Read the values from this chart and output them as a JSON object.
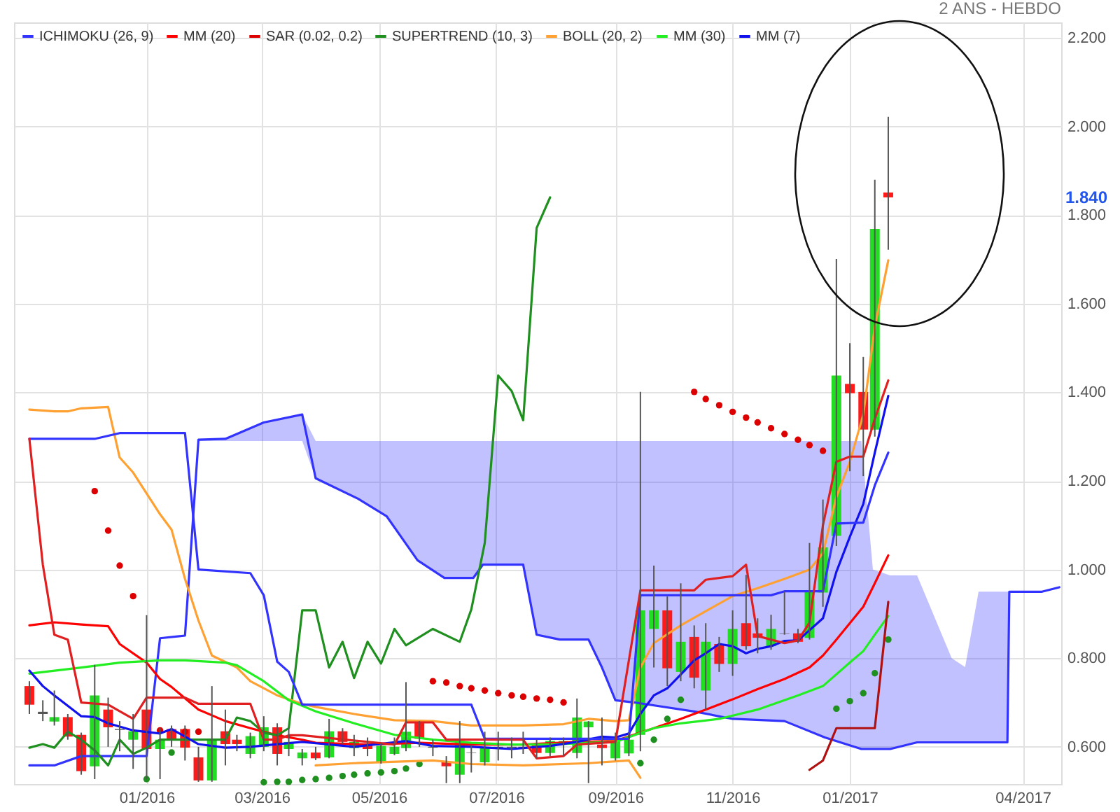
{
  "chart_data": {
    "type": "candlestick",
    "x": [
      "2015-11-01",
      "2015-11-08",
      "2015-11-14",
      "2015-11-21",
      "2015-11-28",
      "2015-12-05",
      "2015-12-12",
      "2015-12-18",
      "2015-12-25",
      "2016-01-01",
      "2016-01-08",
      "2016-01-14",
      "2016-01-21",
      "2016-01-28",
      "2016-02-04",
      "2016-02-11",
      "2016-02-17",
      "2016-02-24",
      "2016-03-02",
      "2016-03-09",
      "2016-03-15",
      "2016-03-22",
      "2016-03-29",
      "2016-04-05",
      "2016-04-12",
      "2016-04-18",
      "2016-04-25",
      "2016-05-02",
      "2016-05-09",
      "2016-05-15",
      "2016-05-22",
      "2016-05-29",
      "2016-06-05",
      "2016-06-12",
      "2016-06-18",
      "2016-06-25",
      "2016-07-02",
      "2016-07-09",
      "2016-07-15",
      "2016-07-22",
      "2016-07-29",
      "2016-08-05",
      "2016-08-12",
      "2016-08-18",
      "2016-08-25",
      "2016-09-01",
      "2016-09-08",
      "2016-09-14",
      "2016-09-21",
      "2016-09-28",
      "2016-10-05",
      "2016-10-12",
      "2016-10-18",
      "2016-10-25",
      "2016-11-01",
      "2016-11-08",
      "2016-11-14",
      "2016-11-21",
      "2016-11-28",
      "2016-12-05",
      "2016-12-11",
      "2016-12-18",
      "2016-12-25",
      "2017-01-01",
      "2017-01-08",
      "2017-01-14",
      "2017-01-21"
    ],
    "ohlc": [
      [
        0.737,
        0.748,
        0.674,
        0.695
      ],
      [
        0.679,
        0.705,
        0.658,
        0.674
      ],
      [
        0.657,
        0.727,
        0.648,
        0.667
      ],
      [
        0.667,
        0.674,
        0.616,
        0.623
      ],
      [
        0.627,
        0.632,
        0.537,
        0.545
      ],
      [
        0.556,
        0.785,
        0.527,
        0.716
      ],
      [
        0.684,
        0.711,
        0.6,
        0.644
      ],
      [
        0.64,
        0.658,
        0.59,
        0.638
      ],
      [
        0.616,
        0.674,
        0.55,
        0.635
      ],
      [
        0.684,
        0.897,
        0.527,
        0.595
      ],
      [
        0.595,
        0.642,
        0.527,
        0.616
      ],
      [
        0.64,
        0.648,
        0.6,
        0.616
      ],
      [
        0.64,
        0.648,
        0.569,
        0.598
      ],
      [
        0.576,
        0.6,
        0.521,
        0.524
      ],
      [
        0.524,
        0.737,
        0.521,
        0.616
      ],
      [
        0.635,
        0.684,
        0.558,
        0.606
      ],
      [
        0.616,
        0.627,
        0.59,
        0.606
      ],
      [
        0.584,
        0.632,
        0.574,
        0.624
      ],
      [
        0.6,
        0.669,
        0.59,
        0.644
      ],
      [
        0.644,
        0.653,
        0.558,
        0.584
      ],
      [
        0.595,
        0.642,
        0.579,
        0.611
      ],
      [
        0.574,
        0.595,
        0.558,
        0.587
      ],
      [
        0.587,
        0.6,
        0.57,
        0.574
      ],
      [
        0.576,
        0.663,
        0.574,
        0.635
      ],
      [
        0.635,
        0.642,
        0.606,
        0.611
      ],
      [
        0.597,
        0.627,
        0.579,
        0.611
      ],
      [
        0.605,
        0.621,
        0.579,
        0.595
      ],
      [
        0.565,
        0.609,
        0.562,
        0.602
      ],
      [
        0.584,
        0.621,
        0.581,
        0.6
      ],
      [
        0.597,
        0.746,
        0.59,
        0.634
      ],
      [
        0.655,
        0.658,
        0.6,
        0.618
      ],
      [
        0.6,
        0.616,
        0.579,
        0.598
      ],
      [
        0.565,
        0.579,
        0.518,
        0.556
      ],
      [
        0.537,
        0.658,
        0.518,
        0.613
      ],
      [
        0.587,
        0.605,
        0.542,
        0.586
      ],
      [
        0.565,
        0.634,
        0.558,
        0.597
      ],
      [
        0.6,
        0.634,
        0.569,
        0.598
      ],
      [
        0.6,
        0.621,
        0.574,
        0.598
      ],
      [
        0.6,
        0.634,
        0.584,
        0.597
      ],
      [
        0.605,
        0.616,
        0.574,
        0.586
      ],
      [
        0.586,
        0.621,
        0.579,
        0.613
      ],
      [
        0.605,
        0.621,
        0.579,
        0.613
      ],
      [
        0.586,
        0.709,
        0.574,
        0.666
      ],
      [
        0.644,
        0.658,
        0.518,
        0.657
      ],
      [
        0.605,
        0.666,
        0.558,
        0.597
      ],
      [
        0.574,
        0.632,
        0.569,
        0.613
      ],
      [
        0.585,
        0.632,
        0.579,
        0.616
      ],
      [
        0.627,
        1.401,
        0.59,
        0.908
      ],
      [
        0.866,
        1.009,
        0.779,
        0.908
      ],
      [
        0.908,
        0.939,
        0.737,
        0.777
      ],
      [
        0.769,
        0.969,
        0.748,
        0.837
      ],
      [
        0.848,
        0.874,
        0.732,
        0.756
      ],
      [
        0.727,
        0.879,
        0.684,
        0.837
      ],
      [
        0.832,
        0.848,
        0.769,
        0.787
      ],
      [
        0.787,
        0.908,
        0.76,
        0.866
      ],
      [
        0.879,
        0.988,
        0.819,
        0.827
      ],
      [
        0.856,
        0.89,
        0.811,
        0.846
      ],
      [
        0.827,
        0.898,
        0.819,
        0.866
      ],
      [
        0.856,
        0.95,
        0.853,
        0.855
      ],
      [
        0.856,
        0.866,
        0.834,
        0.837
      ],
      [
        0.846,
        1.06,
        0.842,
        0.95
      ],
      [
        0.948,
        1.158,
        0.916,
        1.05
      ],
      [
        1.076,
        1.701,
        1.053,
        1.438
      ],
      [
        1.419,
        1.511,
        1.222,
        1.398
      ],
      [
        1.401,
        1.48,
        1.211,
        1.316
      ],
      [
        1.316,
        1.88,
        1.3,
        1.769
      ],
      [
        1.851,
        2.022,
        1.722,
        1.84
      ]
    ],
    "colors": [
      "#ff1a1a",
      "#555555",
      "#22dd22",
      "#ff1a1a",
      "#ff1a1a",
      "#22dd22",
      "#ff1a1a",
      "#555555",
      "#22dd22",
      "#ff1a1a",
      "#22dd22",
      "#ff1a1a",
      "#ff1a1a",
      "#ff1a1a",
      "#22dd22",
      "#ff1a1a",
      "#ff1a1a",
      "#22dd22",
      "#22dd22",
      "#ff1a1a",
      "#22dd22",
      "#22dd22",
      "#ff1a1a",
      "#22dd22",
      "#ff1a1a",
      "#22dd22",
      "#ff1a1a",
      "#22dd22",
      "#22dd22",
      "#22dd22",
      "#ff1a1a",
      "#555555",
      "#ff1a1a",
      "#22dd22",
      "#555555",
      "#22dd22",
      "#555555",
      "#555555",
      "#555555",
      "#ff1a1a",
      "#22dd22",
      "#22dd22",
      "#22dd22",
      "#22dd22",
      "#ff1a1a",
      "#22dd22",
      "#22dd22",
      "#22dd22",
      "#22dd22",
      "#ff1a1a",
      "#22dd22",
      "#ff1a1a",
      "#22dd22",
      "#ff1a1a",
      "#22dd22",
      "#ff1a1a",
      "#ff1a1a",
      "#22dd22",
      "#555555",
      "#ff1a1a",
      "#22dd22",
      "#22dd22",
      "#22dd22",
      "#ff1a1a",
      "#ff1a1a",
      "#22dd22",
      "#ff1a1a"
    ],
    "series": [
      {
        "name": "ICHIMOKU (26, 9)",
        "type": "line",
        "color": "#3333ff",
        "x": [
          "2015-11-01",
          "2015-11-14",
          "2015-11-28",
          "2016-01-01",
          "2016-01-08",
          "2016-01-21",
          "2016-01-28",
          "2016-02-11",
          "2016-03-02",
          "2016-03-22",
          "2016-03-29",
          "2016-04-20",
          "2016-05-05",
          "2016-05-21",
          "2016-06-04",
          "2016-06-19",
          "2016-06-24",
          "2016-07-15",
          "2016-07-22",
          "2016-08-03",
          "2016-08-18",
          "2016-08-25",
          "2016-09-01",
          "2016-09-11",
          "2016-10-13",
          "2016-11-01",
          "2016-11-28",
          "2016-12-19",
          "2017-01-07",
          "2017-01-13",
          "2017-01-22",
          "2017-02-05",
          "2017-02-23",
          "2017-03-02",
          "2017-03-09",
          "2017-03-24",
          "2017-03-25",
          "2017-04-11",
          "2017-04-20"
        ],
        "values": [
          0.558,
          0.558,
          0.579,
          0.579,
          0.845,
          0.851,
          1.293,
          1.295,
          1.332,
          1.35,
          1.206,
          1.16,
          1.12,
          1.021,
          0.981,
          0.981,
          1.011,
          1.011,
          0.853,
          0.842,
          0.842,
          0.779,
          0.705,
          0.7,
          0.679,
          0.663,
          0.658,
          0.621,
          0.595,
          0.595,
          0.595,
          0.61,
          0.61,
          0.61,
          0.61,
          0.61,
          0.95,
          0.95,
          0.96
        ],
        "lower": [
          null,
          null,
          null,
          null,
          null,
          null,
          1.29,
          1.29,
          1.29,
          1.29,
          1.206,
          1.16,
          1.12,
          1.021,
          0.981,
          0.981,
          1.011,
          1.011,
          0.853,
          0.842,
          0.842,
          0.779,
          0.705,
          0.7,
          0.679,
          0.663,
          0.658,
          0.621,
          0.595,
          0.595,
          0.595,
          0.61,
          0.61,
          0.61,
          0.61,
          0.61,
          0.95,
          0.95,
          0.96
        ],
        "upper": [
          null,
          null,
          null,
          null,
          null,
          null,
          1.293,
          1.295,
          1.332,
          1.35,
          1.29,
          1.29,
          1.29,
          1.29,
          1.29,
          1.29,
          1.29,
          1.29,
          1.29,
          1.29,
          1.29,
          1.29,
          1.29,
          1.29,
          1.29,
          1.29,
          1.29,
          1.29,
          1.29,
          1.0,
          0.987,
          0.987,
          0.8,
          0.78,
          0.95,
          0.95,
          0.95,
          0.95,
          0.96
        ]
      },
      {
        "name": "MM (20)",
        "type": "line",
        "color": "#ff0000",
        "x": [
          "2015-11-01",
          "2015-11-14",
          "2015-11-28",
          "2015-12-12",
          "2015-12-18",
          "2016-01-01",
          "2016-01-08",
          "2016-01-14",
          "2016-01-28",
          "2016-02-11",
          "2016-02-24",
          "2016-03-09",
          "2016-03-22",
          "2016-03-29",
          "2016-04-25",
          "2016-05-22",
          "2016-06-18",
          "2016-07-15",
          "2016-08-12",
          "2016-09-01",
          "2016-09-14",
          "2016-09-21",
          "2016-10-05",
          "2016-10-18",
          "2016-11-01",
          "2016-11-14",
          "2016-11-28",
          "2016-12-11",
          "2016-12-18",
          "2016-12-25",
          "2017-01-01",
          "2017-01-08",
          "2017-01-14",
          "2017-01-21"
        ],
        "values": [
          0.874,
          0.881,
          0.876,
          0.872,
          0.832,
          0.79,
          0.753,
          0.735,
          0.684,
          0.658,
          0.642,
          0.626,
          0.616,
          0.609,
          0.605,
          0.609,
          0.605,
          0.605,
          0.611,
          0.613,
          0.632,
          0.642,
          0.663,
          0.684,
          0.707,
          0.73,
          0.753,
          0.779,
          0.806,
          0.842,
          0.879,
          0.916,
          0.969,
          1.032
        ]
      },
      {
        "name": "SAR (0.02, 0.2)",
        "type": "scatter",
        "marker": "circle",
        "color": "#dd0000",
        "x": [
          "2015-12-05",
          "2015-12-12",
          "2015-12-18",
          "2015-12-25",
          "2016-01-08",
          "2016-01-21",
          "2016-01-28",
          "2016-05-29",
          "2016-06-05",
          "2016-06-12",
          "2016-06-18",
          "2016-06-25",
          "2016-07-02",
          "2016-07-09",
          "2016-07-15",
          "2016-07-22",
          "2016-07-29",
          "2016-08-05",
          "2016-10-12",
          "2016-10-18",
          "2016-10-25",
          "2016-11-01",
          "2016-11-08",
          "2016-11-14",
          "2016-11-21",
          "2016-11-28",
          "2016-12-05",
          "2016-12-11",
          "2016-12-18"
        ],
        "values": [
          1.177,
          1.088,
          1.009,
          0.94,
          0.637,
          0.634,
          0.634,
          0.748,
          0.745,
          0.737,
          0.732,
          0.727,
          0.721,
          0.716,
          0.713,
          0.709,
          0.706,
          0.7,
          1.401,
          1.385,
          1.371,
          1.356,
          1.343,
          1.332,
          1.319,
          1.306,
          1.293,
          1.281,
          1.268
        ]
      },
      {
        "name": "SUPERTREND (10, 3)",
        "type": "line",
        "color": "#1f8f1f",
        "x": [
          "2015-11-01",
          "2015-11-08",
          "2015-11-14",
          "2015-11-21",
          "2015-11-28",
          "2015-12-05",
          "2015-12-12",
          "2015-12-18",
          "2015-12-25",
          "2016-01-01",
          "2016-01-08",
          "2016-01-21",
          "2016-02-04",
          "2016-02-11",
          "2016-02-17",
          "2016-02-24",
          "2016-03-02",
          "2016-03-09",
          "2016-03-15",
          "2016-03-22",
          "2016-03-29",
          "2016-04-05",
          "2016-04-12",
          "2016-04-18",
          "2016-04-25",
          "2016-05-02",
          "2016-05-09",
          "2016-05-15",
          "2016-05-29",
          "2016-06-12",
          "2016-06-18",
          "2016-06-25",
          "2016-07-02",
          "2016-07-09",
          "2016-07-15",
          "2016-07-22",
          "2016-07-29"
        ],
        "values": [
          0.598,
          0.606,
          0.598,
          0.634,
          0.616,
          0.592,
          0.558,
          0.616,
          0.584,
          0.598,
          0.616,
          0.616,
          0.616,
          0.616,
          0.666,
          0.658,
          0.632,
          0.626,
          0.642,
          0.908,
          0.908,
          0.779,
          0.837,
          0.755,
          0.837,
          0.788,
          0.866,
          0.829,
          0.866,
          0.837,
          0.91,
          1.06,
          1.438,
          1.403,
          1.337,
          1.771,
          1.84
        ]
      },
      {
        "name": "BOLL (20, 2)",
        "type": "line",
        "color": "#ffa033",
        "x": [
          "2015-11-01",
          "2015-11-14",
          "2015-11-21",
          "2015-11-28",
          "2015-12-12",
          "2015-12-18",
          "2015-12-25",
          "2016-01-08",
          "2016-01-14",
          "2016-01-21",
          "2016-01-28",
          "2016-02-04",
          "2016-02-17",
          "2016-02-24",
          "2016-03-09",
          "2016-03-22",
          "2016-03-29",
          "2016-04-18",
          "2016-05-09",
          "2016-05-29",
          "2016-06-18",
          "2016-07-15",
          "2016-08-05",
          "2016-08-18",
          "2016-09-01",
          "2016-09-08",
          "2016-09-14",
          "2016-09-21",
          "2016-10-05",
          "2016-10-18",
          "2016-11-01",
          "2016-11-14",
          "2016-11-28",
          "2016-12-11",
          "2016-12-18",
          "2016-12-25",
          "2017-01-01",
          "2017-01-08",
          "2017-01-14",
          "2017-01-21"
        ],
        "values": [
          1.361,
          1.357,
          1.357,
          1.364,
          1.367,
          1.253,
          1.219,
          1.125,
          1.09,
          0.979,
          0.885,
          0.806,
          0.779,
          0.748,
          0.716,
          0.697,
          0.69,
          0.674,
          0.66,
          0.658,
          0.648,
          0.648,
          0.651,
          0.663,
          0.658,
          0.66,
          0.779,
          0.834,
          0.874,
          0.906,
          0.94,
          0.958,
          0.979,
          1.0,
          1.037,
          1.164,
          1.243,
          1.35,
          1.548,
          1.698
        ]
      },
      {
        "name": "MM (30)",
        "type": "line",
        "color": "#22ee22",
        "x": [
          "2015-11-01",
          "2015-11-28",
          "2015-12-18",
          "2016-01-08",
          "2016-01-21",
          "2016-02-11",
          "2016-02-17",
          "2016-03-02",
          "2016-03-15",
          "2016-03-29",
          "2016-04-18",
          "2016-05-09",
          "2016-05-29",
          "2016-06-18",
          "2016-07-09",
          "2016-07-29",
          "2016-08-18",
          "2016-09-01",
          "2016-09-21",
          "2016-10-05",
          "2016-10-25",
          "2016-11-14",
          "2016-12-05",
          "2016-12-18",
          "2017-01-01",
          "2017-01-08",
          "2017-01-14",
          "2017-01-21"
        ],
        "values": [
          0.765,
          0.779,
          0.79,
          0.795,
          0.795,
          0.79,
          0.784,
          0.748,
          0.705,
          0.68,
          0.653,
          0.627,
          0.616,
          0.609,
          0.605,
          0.605,
          0.609,
          0.611,
          0.642,
          0.653,
          0.663,
          0.684,
          0.716,
          0.737,
          0.79,
          0.816,
          0.853,
          0.895
        ]
      },
      {
        "name": "MM (7)",
        "type": "line",
        "color": "#1111ee",
        "x": [
          "2015-11-01",
          "2015-11-08",
          "2015-11-14",
          "2015-11-28",
          "2015-12-05",
          "2015-12-12",
          "2015-12-25",
          "2016-01-08",
          "2016-01-14",
          "2016-01-28",
          "2016-02-11",
          "2016-02-24",
          "2016-03-09",
          "2016-03-22",
          "2016-03-29",
          "2016-04-18",
          "2016-05-15",
          "2016-05-29",
          "2016-06-18",
          "2016-07-09",
          "2016-07-29",
          "2016-08-12",
          "2016-08-25",
          "2016-09-01",
          "2016-09-08",
          "2016-09-14",
          "2016-09-21",
          "2016-09-28",
          "2016-10-05",
          "2016-10-12",
          "2016-10-18",
          "2016-10-25",
          "2016-11-01",
          "2016-11-08",
          "2016-11-14",
          "2016-11-21",
          "2016-11-28",
          "2016-12-05",
          "2016-12-11",
          "2016-12-18",
          "2016-12-25",
          "2017-01-01",
          "2017-01-08",
          "2017-01-14",
          "2017-01-21"
        ],
        "values": [
          0.772,
          0.737,
          0.716,
          0.669,
          0.667,
          0.653,
          0.637,
          0.63,
          0.64,
          0.606,
          0.598,
          0.6,
          0.606,
          0.611,
          0.608,
          0.6,
          0.613,
          0.602,
          0.6,
          0.595,
          0.602,
          0.611,
          0.623,
          0.621,
          0.63,
          0.674,
          0.716,
          0.732,
          0.763,
          0.795,
          0.811,
          0.832,
          0.827,
          0.811,
          0.821,
          0.827,
          0.839,
          0.84,
          0.863,
          0.89,
          0.995,
          1.074,
          1.148,
          1.264,
          1.392
        ]
      },
      {
        "type": "scatter",
        "marker": "circle",
        "color": "#1f8f1f",
        "x": [
          "2016-01-01",
          "2016-01-14",
          "2016-03-02",
          "2016-03-09",
          "2016-03-15",
          "2016-03-22",
          "2016-03-29",
          "2016-04-05",
          "2016-04-12",
          "2016-04-18",
          "2016-04-25",
          "2016-05-02",
          "2016-05-09",
          "2016-05-15",
          "2016-05-22",
          "2016-09-14",
          "2016-09-21",
          "2016-09-28",
          "2016-10-05",
          "2016-12-25",
          "2017-01-01",
          "2017-01-08",
          "2017-01-14",
          "2017-01-21"
        ],
        "values": [
          0.527,
          0.587,
          0.52,
          0.521,
          0.521,
          0.525,
          0.527,
          0.53,
          0.534,
          0.537,
          0.54,
          0.542,
          0.545,
          0.551,
          0.561,
          0.563,
          0.616,
          0.663,
          0.706,
          0.686,
          0.703,
          0.721,
          0.766,
          0.842
        ]
      },
      {
        "type": "line",
        "color": "#ffa033",
        "x": [
          "2016-03-29",
          "2016-04-18",
          "2016-05-29",
          "2016-06-18",
          "2016-07-15",
          "2016-08-18",
          "2016-09-08",
          "2016-09-14"
        ],
        "values": [
          0.558,
          0.563,
          0.569,
          0.561,
          0.558,
          0.563,
          0.569,
          0.53
        ]
      },
      {
        "type": "line",
        "color": "#3333ff",
        "x": [
          "2015-11-01",
          "2015-12-05",
          "2015-12-18",
          "2016-01-21",
          "2016-01-28",
          "2016-02-24",
          "2016-03-02",
          "2016-03-09",
          "2016-03-15",
          "2016-03-22",
          "2016-06-18",
          "2016-06-25",
          "2016-09-08",
          "2016-09-14",
          "2016-11-21",
          "2016-11-28",
          "2016-12-18",
          "2016-12-25",
          "2017-01-08",
          "2017-01-14",
          "2017-01-21"
        ],
        "values": [
          1.295,
          1.295,
          1.308,
          1.308,
          1.0,
          0.992,
          0.942,
          0.792,
          0.769,
          0.695,
          0.695,
          0.618,
          0.618,
          0.942,
          0.942,
          0.951,
          0.951,
          1.104,
          1.106,
          1.19,
          1.264
        ]
      },
      {
        "type": "line",
        "color": "#e02020",
        "x": [
          "2015-11-01",
          "2015-11-08",
          "2015-11-14",
          "2015-11-21",
          "2015-11-28",
          "2015-12-12",
          "2015-12-25",
          "2016-01-01",
          "2016-01-21",
          "2016-01-28",
          "2016-02-24",
          "2016-03-02",
          "2016-03-09",
          "2016-03-15",
          "2016-03-22",
          "2016-05-09",
          "2016-05-15",
          "2016-05-29",
          "2016-06-05",
          "2016-07-15",
          "2016-07-22",
          "2016-08-05",
          "2016-08-12",
          "2016-09-01",
          "2016-09-14",
          "2016-10-12",
          "2016-10-18",
          "2016-11-01",
          "2016-11-08",
          "2016-11-14",
          "2016-11-28",
          "2016-12-05",
          "2016-12-11",
          "2016-12-18",
          "2016-12-25",
          "2017-01-01",
          "2017-01-08",
          "2017-01-14",
          "2017-01-21"
        ],
        "values": [
          1.295,
          1.011,
          0.853,
          0.842,
          0.7,
          0.695,
          0.663,
          0.711,
          0.711,
          0.697,
          0.697,
          0.616,
          0.616,
          0.626,
          0.626,
          0.605,
          0.655,
          0.655,
          0.616,
          0.616,
          0.574,
          0.579,
          0.605,
          0.611,
          0.953,
          0.953,
          0.977,
          0.985,
          1.011,
          0.85,
          0.834,
          0.84,
          0.88,
          1.1,
          1.243,
          1.255,
          1.255,
          1.34,
          1.427
        ]
      },
      {
        "type": "line",
        "color": "#b01010",
        "x": [
          "2016-12-11",
          "2016-12-18",
          "2016-12-25",
          "2017-01-14",
          "2017-01-21"
        ],
        "values": [
          0.548,
          0.569,
          0.642,
          0.642,
          0.927
        ]
      }
    ],
    "xlim": [
      "2015-10-24",
      "2017-04-21"
    ],
    "xticks": [
      {
        "value": "2016-01-01",
        "label": "01/2016"
      },
      {
        "value": "2016-03-01",
        "label": "03/2016"
      },
      {
        "value": "2016-05-01",
        "label": "05/2016"
      },
      {
        "value": "2016-07-01",
        "label": "07/2016"
      },
      {
        "value": "2016-09-01",
        "label": "09/2016"
      },
      {
        "value": "2016-11-01",
        "label": "11/2016"
      },
      {
        "value": "2017-01-01",
        "label": "01/2017"
      },
      {
        "value": "2017-04-01",
        "label": "04/2017"
      }
    ],
    "ylim": [
      0.516,
      2.235
    ],
    "yticks": [
      {
        "value": 0.6,
        "label": "0.600"
      },
      {
        "value": 0.8,
        "label": "0.800"
      },
      {
        "value": 1.0,
        "label": "1.000"
      },
      {
        "value": 1.2,
        "label": "1.200"
      },
      {
        "value": 1.4,
        "label": "1.400"
      },
      {
        "value": 1.6,
        "label": "1.600"
      },
      {
        "value": 1.8,
        "label": "1.800"
      },
      {
        "value": 2.0,
        "label": "2.000"
      },
      {
        "value": 2.2,
        "label": "2.200"
      }
    ],
    "grid": true,
    "legend": "top left",
    "annotations": [
      "2 ANS - HEBDO",
      "1.840"
    ]
  }
}
